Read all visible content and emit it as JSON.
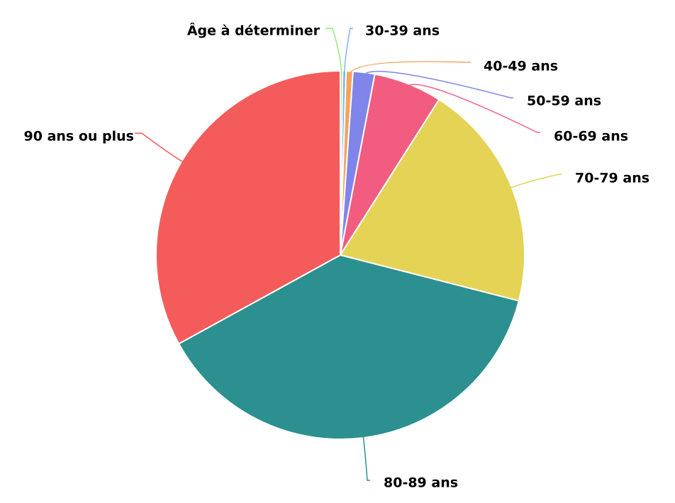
{
  "chart_data": {
    "type": "pie",
    "title": "",
    "categories": [
      "Âge à déterminer",
      "30-39 ans",
      "40-49 ans",
      "50-59 ans",
      "60-69 ans",
      "70-79 ans",
      "80-89 ans",
      "90 ans ou plus"
    ],
    "values": [
      0.2,
      0.3,
      0.6,
      1.9,
      6.0,
      20.0,
      38.0,
      33.0
    ],
    "colors": [
      "#90ed7d",
      "#7cb5ec",
      "#f7a35c",
      "#8085e9",
      "#f15c80",
      "#e4d354",
      "#2b908f",
      "#f45b5b"
    ],
    "legend": "none",
    "start_angle_deg": 0,
    "direction": "clockwise"
  }
}
